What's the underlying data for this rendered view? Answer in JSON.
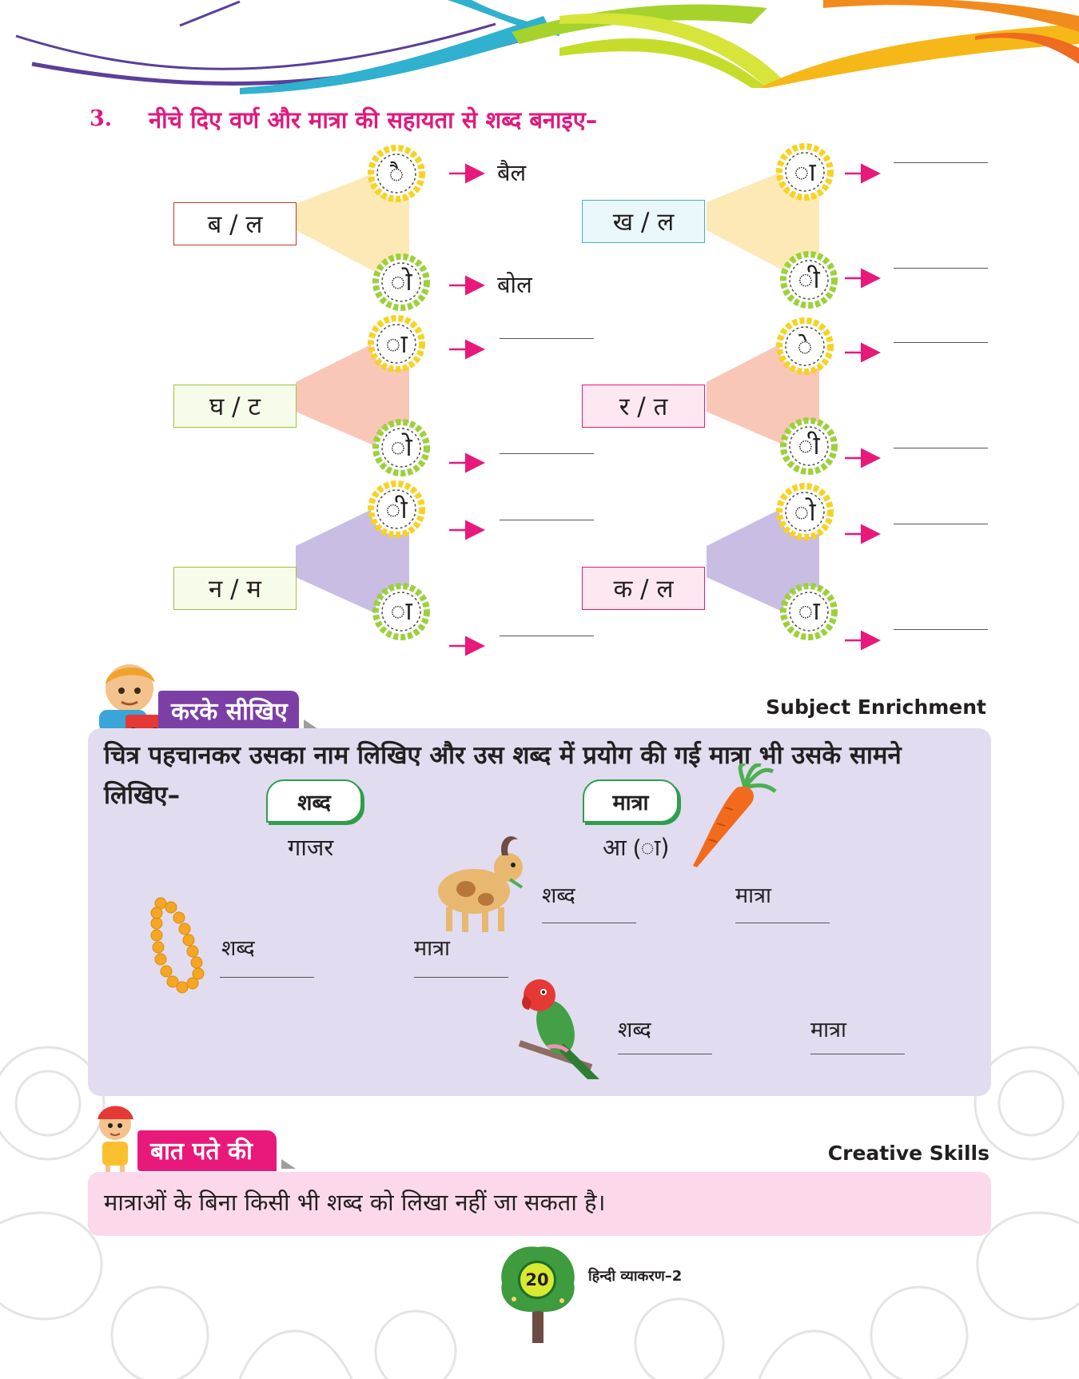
{
  "exercise": {
    "number": "3.",
    "instruction": "नीचे दिए वर्ण और मात्रा की सहायता से शब्द बनाइए–",
    "groups": [
      {
        "letters": "ब / ल",
        "matra_top": "ै",
        "matra_bottom": "ो",
        "answer_top": "बैल",
        "answer_bottom": "बोल"
      },
      {
        "letters": "ख / ल",
        "matra_top": "ा",
        "matra_bottom": "ी",
        "answer_top": "",
        "answer_bottom": ""
      },
      {
        "letters": "घ / ट",
        "matra_top": "ा",
        "matra_bottom": "ो",
        "answer_top": "",
        "answer_bottom": ""
      },
      {
        "letters": "र / त",
        "matra_top": "े",
        "matra_bottom": "ी",
        "answer_top": "",
        "answer_bottom": ""
      },
      {
        "letters": "न / म",
        "matra_top": "ी",
        "matra_bottom": "ा",
        "answer_top": "",
        "answer_bottom": ""
      },
      {
        "letters": "क / ल",
        "matra_top": "ो",
        "matra_bottom": "ा",
        "answer_top": "",
        "answer_bottom": ""
      }
    ]
  },
  "activity": {
    "badge": "करके सीखिए",
    "tag": "Subject Enrichment",
    "instruction": "चित्र पहचानकर उसका नाम लिखिए और उस शब्द में प्रयोग की गई मात्रा भी उसके सामने लिखिए–",
    "word_header": "शब्द",
    "matra_header": "मात्रा",
    "example_word": "गाजर",
    "example_matra": "आ (ा)",
    "word_label": "शब्द",
    "matra_label": "मात्रा"
  },
  "fact": {
    "badge": "बात पते की",
    "tag": "Creative Skills",
    "text": "मात्राओं के बिना किसी भी शब्द को लिखा नहीं जा सकता है।"
  },
  "footer": {
    "page_number": "20",
    "book_title": "हिन्दी व्याकरण–2"
  },
  "colors": {
    "accent_magenta": "#e2187d",
    "badge_purple": "#7b3fa6",
    "badge_pink": "#e8197a",
    "panel_lavender": "#e1dcef",
    "panel_pink": "#fbd9ea"
  }
}
